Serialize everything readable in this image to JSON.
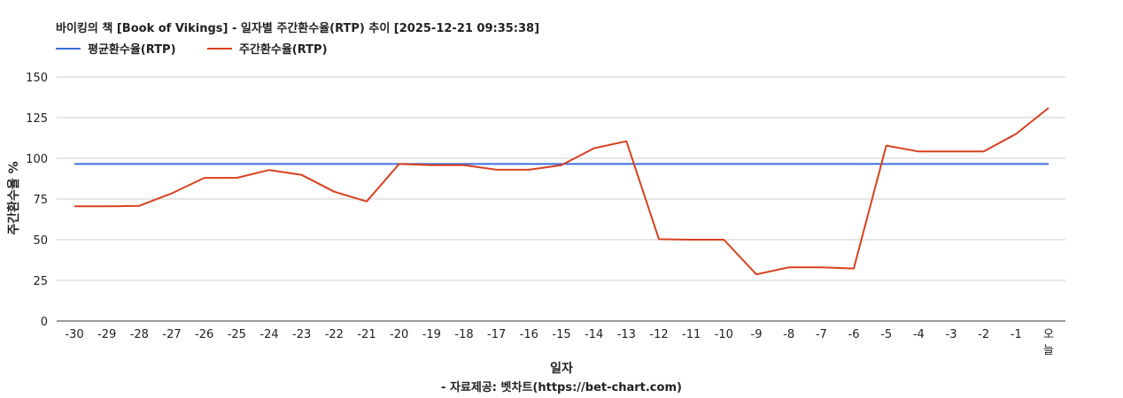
{
  "chart_data": {
    "type": "line",
    "title": "바이킹의 책 [Book of Vikings] - 일자별 주간환수율(RTP) 추이 [2025-12-21 09:35:38]",
    "xlabel": "일자",
    "ylabel": "주간환수율 %",
    "source": "- 자료제공: 벳차트(https://bet-chart.com)",
    "ylim": [
      0,
      150
    ],
    "yticks": [
      0,
      25,
      50,
      75,
      100,
      125,
      150
    ],
    "grid": true,
    "legend_position": "top-left",
    "categories": [
      "-30",
      "-29",
      "-28",
      "-27",
      "-26",
      "-25",
      "-24",
      "-23",
      "-22",
      "-21",
      "-20",
      "-19",
      "-18",
      "-17",
      "-16",
      "-15",
      "-14",
      "-13",
      "-12",
      "-11",
      "-10",
      "-9",
      "-8",
      "-7",
      "-6",
      "-5",
      "-4",
      "-3",
      "-2",
      "-1",
      "오늘"
    ],
    "series": [
      {
        "name": "평균환수율(RTP)",
        "color": "#3c6ed8",
        "values": [
          96.5,
          96.5,
          96.5,
          96.5,
          96.5,
          96.5,
          96.5,
          96.5,
          96.5,
          96.5,
          96.5,
          96.5,
          96.5,
          96.5,
          96.5,
          96.5,
          96.5,
          96.5,
          96.5,
          96.5,
          96.5,
          96.5,
          96.5,
          96.5,
          96.5,
          96.5,
          96.5,
          96.5,
          96.5,
          96.5,
          96.5
        ]
      },
      {
        "name": "주간환수율(RTP)",
        "color": "#d9401f",
        "values": [
          70.5,
          70.5,
          70.8,
          78.5,
          88,
          88,
          92.8,
          89.8,
          79.5,
          73.5,
          96.5,
          95.8,
          95.8,
          93,
          93,
          95.8,
          106.2,
          110.5,
          50.3,
          50,
          50,
          28.7,
          33,
          33,
          32.3,
          107.8,
          104.2,
          104.2,
          104.2,
          115,
          131
        ]
      }
    ]
  }
}
